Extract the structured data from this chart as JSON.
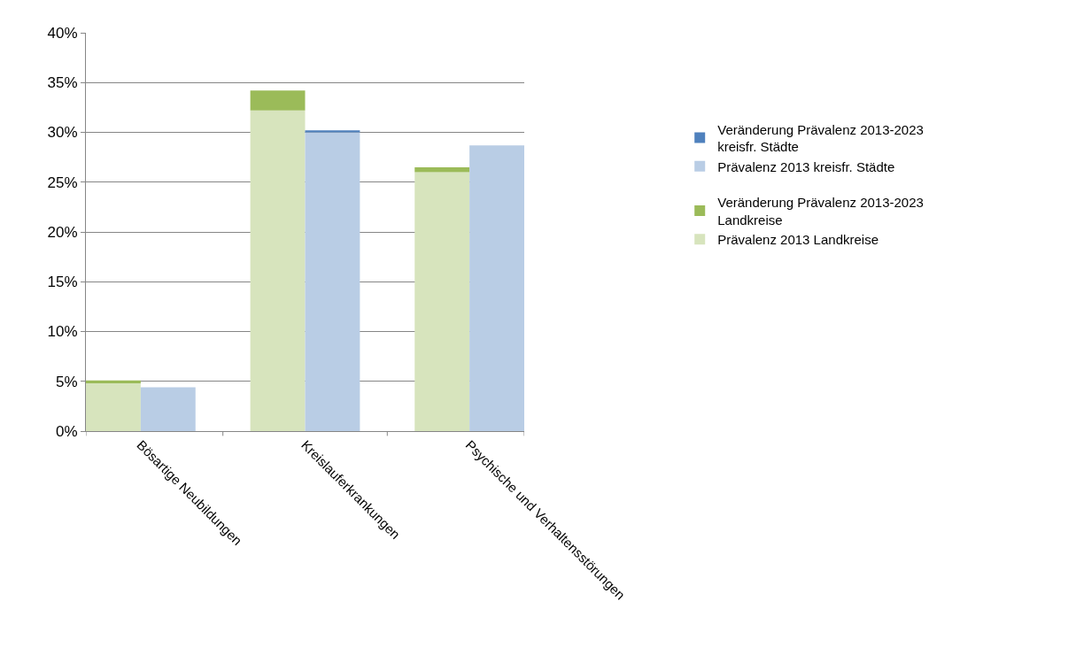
{
  "chart_data": {
    "type": "bar",
    "stacked": true,
    "categories": [
      "Bösartige Neubildungen",
      null,
      null,
      "Kreislauferkrankungen",
      null,
      null,
      "Psychische und Verhaltensstörungen",
      null
    ],
    "series": [
      {
        "name": "Prävalenz 2013 Landkreise",
        "color": "#d7e4bd",
        "values": [
          4.8,
          null,
          null,
          32.2,
          null,
          null,
          26.0,
          null
        ]
      },
      {
        "name": "Veränderung Prävalenz 2013-2023 Landkreise",
        "color": "#9bbb59",
        "values": [
          0.3,
          null,
          null,
          2.0,
          null,
          null,
          0.5,
          null
        ]
      },
      {
        "name": "Prävalenz 2013 kreisfr. Städte",
        "color": "#b9cde5",
        "values": [
          null,
          4.4,
          null,
          null,
          30.0,
          null,
          null,
          28.7
        ]
      },
      {
        "name": "Veränderung Prävalenz 2013-2023 kreisfr. Städte",
        "color": "#4f81bd",
        "values": [
          null,
          0.0,
          null,
          null,
          0.2,
          null,
          null,
          0.0
        ]
      }
    ],
    "ylim": [
      0,
      40
    ],
    "yticks": [
      {
        "value": 0,
        "label": "0%"
      },
      {
        "value": 5,
        "label": "5%"
      },
      {
        "value": 10,
        "label": "10%"
      },
      {
        "value": 15,
        "label": "15%"
      },
      {
        "value": 20,
        "label": "20%"
      },
      {
        "value": 25,
        "label": "25%"
      },
      {
        "value": 30,
        "label": "30%"
      },
      {
        "value": 35,
        "label": "35%"
      },
      {
        "value": 40,
        "label": "40%"
      }
    ],
    "grid": "y",
    "legend": "right"
  }
}
